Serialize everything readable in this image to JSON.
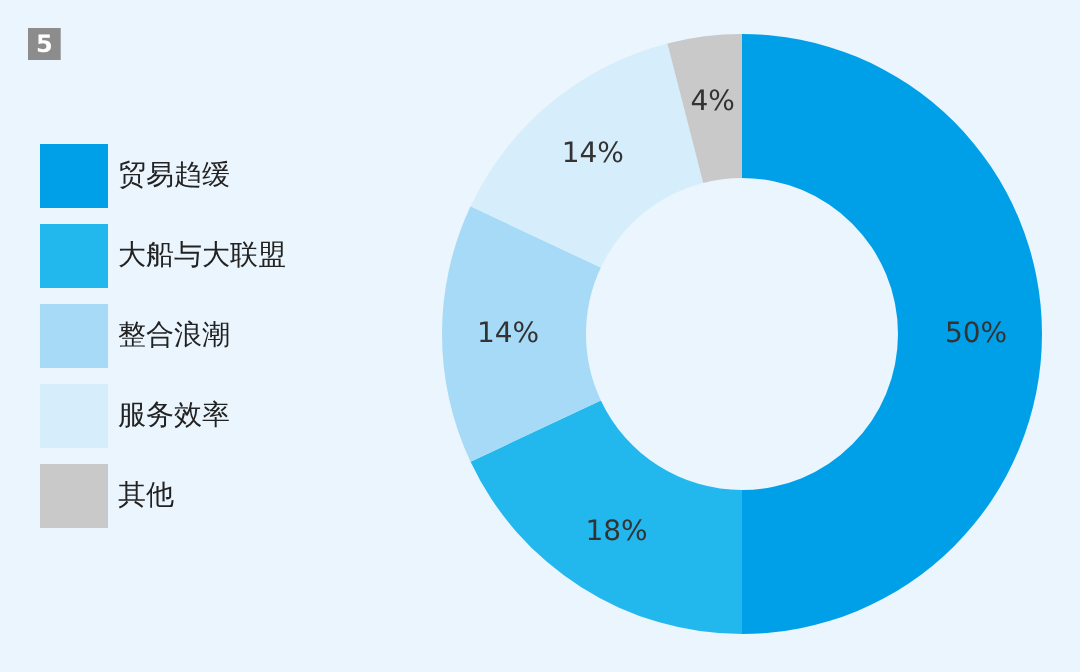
{
  "chart_data": {
    "type": "donut",
    "categories": [
      "贸易趋缓",
      "大船与大联盟",
      "整合浪潮",
      "服务效率",
      "其他"
    ],
    "values": [
      50,
      18,
      14,
      14,
      4
    ],
    "value_labels": [
      "50%",
      "18%",
      "14%",
      "14%",
      "4%"
    ],
    "colors": [
      "#00a0e9",
      "#22b8ee",
      "#a6daf6",
      "#d6eefb",
      "#c9c9c9"
    ],
    "annotations": [
      "5"
    ],
    "legend": "left"
  }
}
